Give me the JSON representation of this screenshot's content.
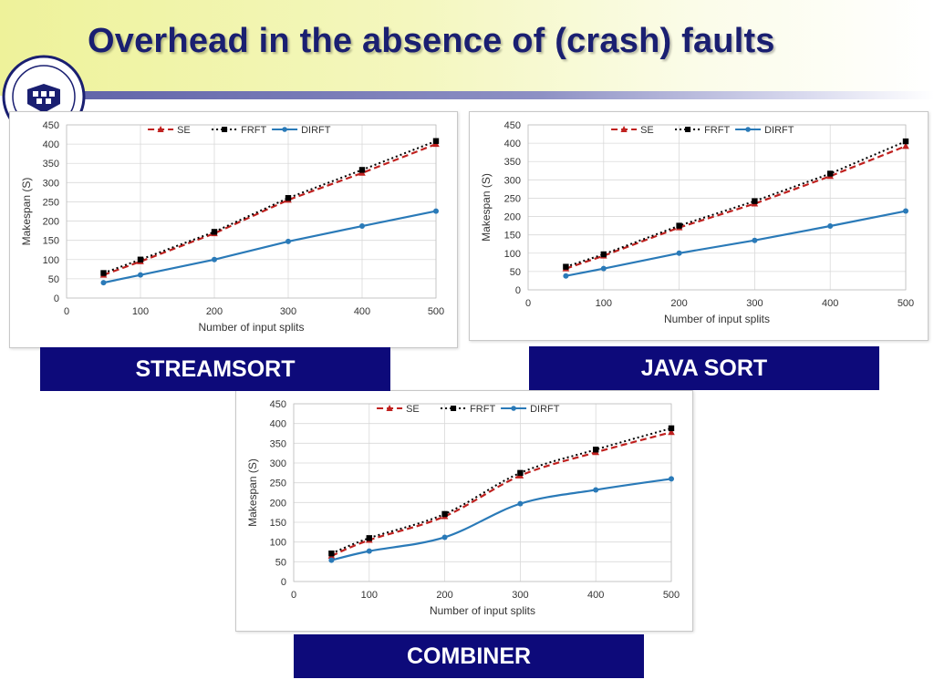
{
  "page": {
    "title": "Overhead in the absence of (crash) faults"
  },
  "colors": {
    "SE": "#c0211f",
    "FRFT": "#000000",
    "DIRFT": "#2a7ab8",
    "caption_bg": "#0d0a7a",
    "title": "#1a1f71"
  },
  "captions": {
    "streamsort": "STREAMSORT",
    "javasort": "JAVA SORT",
    "combiner": "COMBINER"
  },
  "chart_data": [
    {
      "id": "streamsort",
      "type": "line",
      "xlabel": "Number of input splits",
      "ylabel": "Makespan (S)",
      "xlim": [
        0,
        500
      ],
      "ylim": [
        0,
        450
      ],
      "xticks": [
        "0",
        "100",
        "200",
        "300",
        "400",
        "500"
      ],
      "yticks": [
        "0",
        "50",
        "100",
        "150",
        "200",
        "250",
        "300",
        "350",
        "400",
        "450"
      ],
      "x": [
        50,
        100,
        200,
        300,
        400,
        500
      ],
      "legend": "top",
      "grid": true,
      "series": [
        {
          "name": "SE",
          "style": "dashed",
          "marker": "triangle",
          "values": [
            60,
            95,
            168,
            255,
            325,
            400
          ]
        },
        {
          "name": "FRFT",
          "style": "dotted",
          "marker": "square",
          "values": [
            65,
            100,
            172,
            260,
            333,
            408
          ]
        },
        {
          "name": "DIRFT",
          "style": "solid",
          "marker": "circle",
          "values": [
            40,
            60,
            100,
            147,
            187,
            226
          ]
        }
      ]
    },
    {
      "id": "javasort",
      "type": "line",
      "xlabel": "Number of input splits",
      "ylabel": "Makespan (S)",
      "xlim": [
        0,
        500
      ],
      "ylim": [
        0,
        450
      ],
      "xticks": [
        "0",
        "100",
        "200",
        "300",
        "400",
        "500"
      ],
      "yticks": [
        "0",
        "50",
        "100",
        "150",
        "200",
        "250",
        "300",
        "350",
        "400",
        "450"
      ],
      "x": [
        50,
        100,
        200,
        300,
        400,
        500
      ],
      "legend": "top",
      "grid": true,
      "series": [
        {
          "name": "SE",
          "style": "dashed",
          "marker": "triangle",
          "values": [
            58,
            93,
            170,
            235,
            310,
            392
          ]
        },
        {
          "name": "FRFT",
          "style": "dotted",
          "marker": "square",
          "values": [
            63,
            97,
            175,
            242,
            317,
            405
          ]
        },
        {
          "name": "DIRFT",
          "style": "solid",
          "marker": "circle",
          "values": [
            38,
            58,
            100,
            135,
            174,
            215
          ]
        }
      ]
    },
    {
      "id": "combiner",
      "type": "line",
      "xlabel": "Number of input splits",
      "ylabel": "Makespan (S)",
      "xlim": [
        0,
        500
      ],
      "ylim": [
        0,
        450
      ],
      "xticks": [
        "0",
        "100",
        "200",
        "300",
        "400",
        "500"
      ],
      "yticks": [
        "0",
        "50",
        "100",
        "150",
        "200",
        "250",
        "300",
        "350",
        "400",
        "450"
      ],
      "x": [
        50,
        100,
        200,
        300,
        400,
        500
      ],
      "legend": "top",
      "grid": true,
      "series": [
        {
          "name": "SE",
          "style": "dashed",
          "marker": "triangle",
          "values": [
            65,
            105,
            165,
            268,
            327,
            378
          ]
        },
        {
          "name": "FRFT",
          "style": "dotted",
          "marker": "square",
          "values": [
            71,
            110,
            171,
            275,
            334,
            388
          ]
        },
        {
          "name": "DIRFT",
          "style": "solid",
          "marker": "circle",
          "values": [
            54,
            77,
            112,
            197,
            232,
            260
          ]
        }
      ]
    }
  ]
}
